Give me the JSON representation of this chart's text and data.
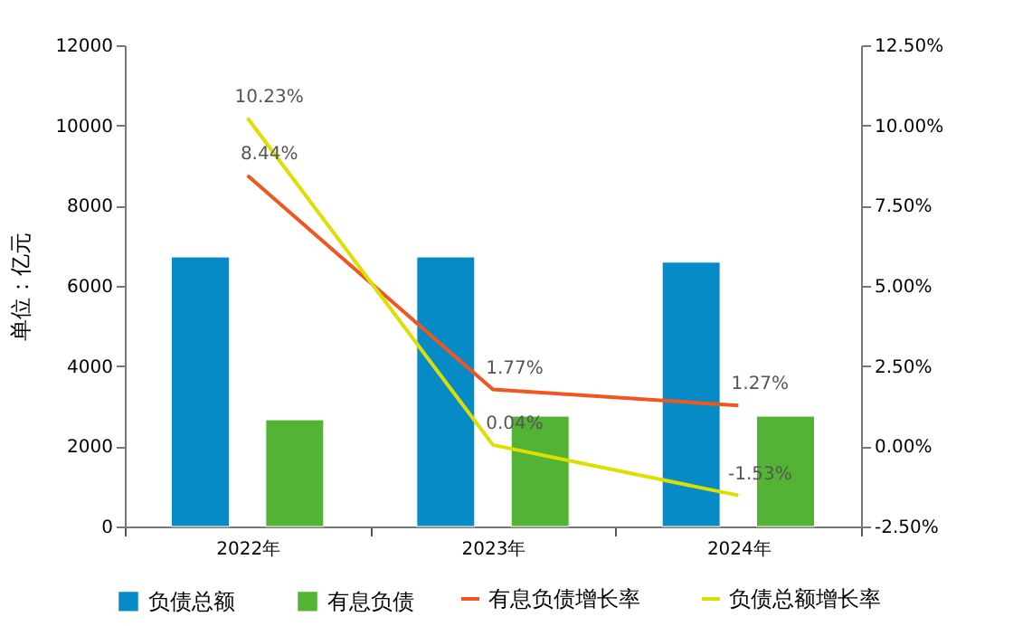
{
  "chart_data": {
    "type": "bar",
    "categories": [
      "2022年",
      "2023年",
      "2024年"
    ],
    "ylabel": "单位：亿元",
    "ylim": [
      0,
      12000
    ],
    "yticks": [
      0,
      2000,
      4000,
      6000,
      8000,
      10000,
      12000
    ],
    "y2lim": [
      -2.5,
      12.5
    ],
    "y2ticks": [
      {
        "value": -2.5,
        "label": "-2.50%"
      },
      {
        "value": 0,
        "label": "0.00%"
      },
      {
        "value": 2.5,
        "label": "2.50%"
      },
      {
        "value": 5,
        "label": "5.00%"
      },
      {
        "value": 7.5,
        "label": "7.50%"
      },
      {
        "value": 10,
        "label": "10.00%"
      },
      {
        "value": 12.5,
        "label": "12.50%"
      }
    ],
    "grid": false,
    "legend": "bottom",
    "series": [
      {
        "name": "负债总额",
        "color": "#078bc6",
        "values": [
          6720,
          6720,
          6590
        ]
      },
      {
        "name": "有息负债",
        "color": "#52b335",
        "values": [
          2660,
          2750,
          2750
        ]
      },
      {
        "name": "有息负债增长率",
        "type": "line",
        "axis": "y2",
        "color": "#f0561e",
        "values": [
          8.44,
          1.77,
          1.27
        ],
        "value_labels": [
          "8.44%",
          "1.77%",
          "1.27%"
        ]
      },
      {
        "name": "负债总额增长率",
        "type": "line",
        "axis": "y2",
        "color": "#dede00",
        "values": [
          10.23,
          0.04,
          -1.53
        ],
        "value_labels": [
          "10.23%",
          "0.04%",
          "-1.53%"
        ]
      }
    ]
  }
}
